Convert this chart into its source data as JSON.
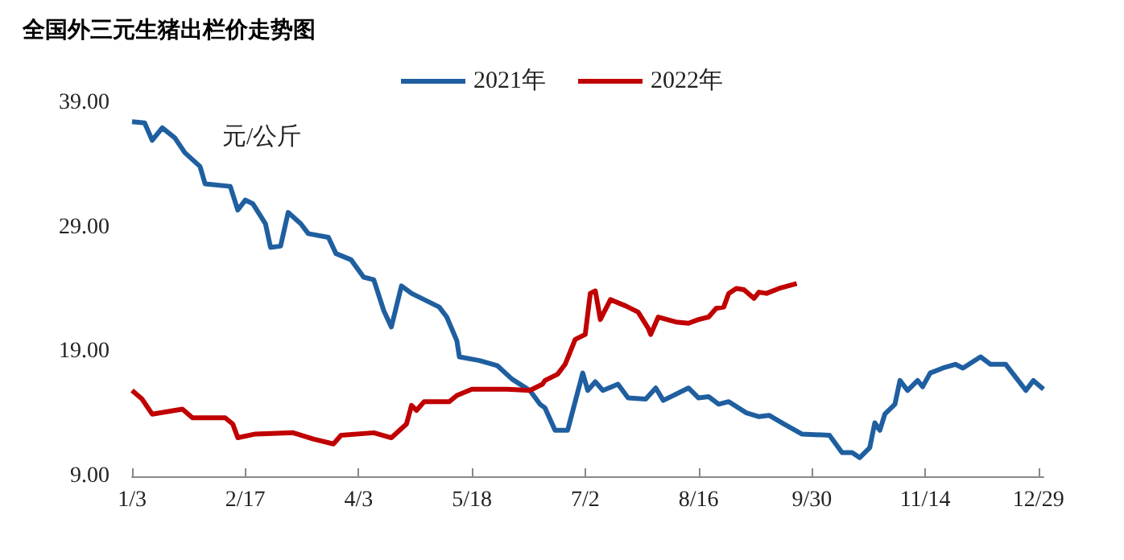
{
  "chart_data": {
    "type": "line",
    "title": "全国外三元生猪出栏价走势图",
    "ylabel": "元/公斤",
    "legend": "top",
    "grid": false,
    "marker": "none",
    "line_style": "solid",
    "xlim": [
      "--01-03",
      "--12-31"
    ],
    "xticks": [
      {
        "value": "--01-03",
        "label": "1/3"
      },
      {
        "value": "--02-17",
        "label": "2/17"
      },
      {
        "value": "--04-03",
        "label": "4/3"
      },
      {
        "value": "--05-18",
        "label": "5/18"
      },
      {
        "value": "--07-02",
        "label": "7/2"
      },
      {
        "value": "--08-16",
        "label": "8/16"
      },
      {
        "value": "--09-30",
        "label": "9/30"
      },
      {
        "value": "--11-14",
        "label": "11/14"
      },
      {
        "value": "--12-29",
        "label": "12/29"
      }
    ],
    "ylim": [
      9,
      39
    ],
    "yticks": [
      {
        "value": 9,
        "label": "9.00"
      },
      {
        "value": 19,
        "label": "19.00"
      },
      {
        "value": 29,
        "label": "29.00"
      },
      {
        "value": 39,
        "label": "39.00"
      }
    ],
    "series": [
      {
        "name": "2021年",
        "color": "#1f5fa0",
        "x": [
          "--01-03",
          "--01-08",
          "--01-11",
          "--01-15",
          "--01-20",
          "--01-24",
          "--01-30",
          "--02-01",
          "--02-11",
          "--02-14",
          "--02-17",
          "--02-20",
          "--02-25",
          "--02-27",
          "--03-03",
          "--03-06",
          "--03-11",
          "--03-14",
          "--03-22",
          "--03-25",
          "--03-31",
          "--04-05",
          "--04-09",
          "--04-13",
          "--04-16",
          "--04-20",
          "--04-24",
          "--04-30",
          "--05-05",
          "--05-08",
          "--05-12",
          "--05-13",
          "--05-21",
          "--05-28",
          "--06-03",
          "--06-10",
          "--06-14",
          "--06-16",
          "--06-20",
          "--06-25",
          "--07-01",
          "--07-03",
          "--07-06",
          "--07-09",
          "--07-15",
          "--07-19",
          "--07-26",
          "--07-30",
          "--08-02",
          "--08-12",
          "--08-16",
          "--08-20",
          "--08-24",
          "--08-28",
          "--09-04",
          "--09-09",
          "--09-13",
          "--09-19",
          "--09-26",
          "--10-07",
          "--10-12",
          "--10-16",
          "--10-19",
          "--10-23",
          "--10-25",
          "--10-27",
          "--10-29",
          "--11-02",
          "--11-04",
          "--11-07",
          "--11-11",
          "--11-13",
          "--11-16",
          "--11-21",
          "--11-26",
          "--11-29",
          "--12-06",
          "--12-10",
          "--12-16",
          "--12-24",
          "--12-27",
          "--12-31"
        ],
        "values": [
          37.5,
          37.4,
          36.0,
          37.0,
          36.2,
          35.0,
          33.9,
          32.5,
          32.3,
          30.4,
          31.2,
          30.9,
          29.3,
          27.4,
          27.5,
          30.2,
          29.3,
          28.5,
          28.2,
          26.9,
          26.4,
          25.0,
          24.8,
          22.3,
          21.0,
          24.3,
          23.7,
          23.1,
          22.6,
          21.8,
          19.9,
          18.6,
          18.3,
          17.9,
          16.8,
          15.9,
          14.8,
          14.5,
          12.7,
          12.7,
          17.3,
          15.9,
          16.6,
          15.9,
          16.4,
          15.3,
          15.2,
          16.1,
          15.1,
          16.1,
          15.3,
          15.4,
          14.8,
          15.0,
          14.1,
          13.8,
          13.9,
          13.2,
          12.4,
          12.3,
          10.9,
          10.9,
          10.5,
          11.3,
          13.3,
          12.7,
          14.0,
          14.8,
          16.7,
          15.9,
          16.7,
          16.2,
          17.3,
          17.7,
          18.0,
          17.7,
          18.6,
          18.0,
          18.0,
          15.9,
          16.7,
          16.0
        ]
      },
      {
        "name": "2022年",
        "color": "#c00000",
        "x": [
          "--01-03",
          "--01-07",
          "--01-11",
          "--01-23",
          "--01-27",
          "--02-09",
          "--02-12",
          "--02-14",
          "--02-21",
          "--03-08",
          "--03-16",
          "--03-24",
          "--03-27",
          "--04-09",
          "--04-16",
          "--04-22",
          "--04-24",
          "--04-26",
          "--04-29",
          "--05-09",
          "--05-12",
          "--05-18",
          "--06-01",
          "--06-10",
          "--06-15",
          "--06-16",
          "--06-21",
          "--06-24",
          "--06-28",
          "--07-02",
          "--07-04",
          "--07-06",
          "--07-08",
          "--07-12",
          "--07-18",
          "--07-23",
          "--07-27",
          "--07-28",
          "--07-31",
          "--08-07",
          "--08-12",
          "--08-16",
          "--08-20",
          "--08-23",
          "--08-26",
          "--08-28",
          "--08-31",
          "--09-03",
          "--09-07",
          "--09-09",
          "--09-12",
          "--09-17",
          "--09-24"
        ],
        "values": [
          15.9,
          15.2,
          14.0,
          14.4,
          13.7,
          13.7,
          13.2,
          12.1,
          12.4,
          12.5,
          12.0,
          11.6,
          12.3,
          12.5,
          12.1,
          13.2,
          14.7,
          14.3,
          15.0,
          15.0,
          15.5,
          16.0,
          16.0,
          15.9,
          16.4,
          16.7,
          17.2,
          18.0,
          20.0,
          20.4,
          23.7,
          23.9,
          21.6,
          23.2,
          22.7,
          22.2,
          20.9,
          20.4,
          21.8,
          21.4,
          21.3,
          21.6,
          21.8,
          22.5,
          22.6,
          23.7,
          24.1,
          24.0,
          23.3,
          23.8,
          23.7,
          24.1,
          24.5
        ]
      }
    ]
  }
}
